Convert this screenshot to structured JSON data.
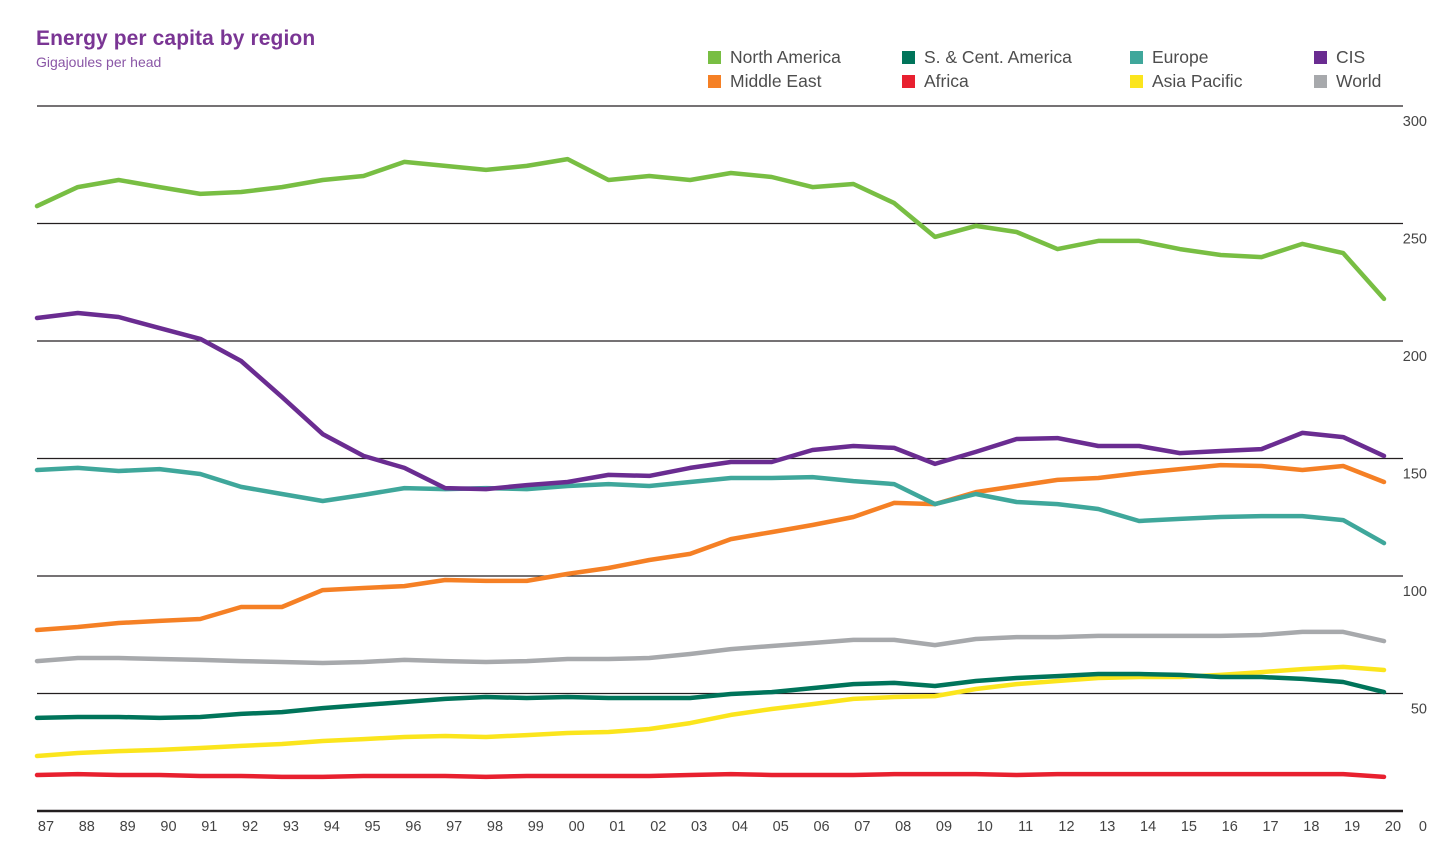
{
  "chart_data": {
    "type": "line",
    "title": "Energy per capita by region",
    "subtitle": "Gigajoules per head",
    "xlabel": "",
    "ylabel": "Gigajoules per head",
    "ylim": [
      0,
      300
    ],
    "yticks": [
      0,
      50,
      100,
      150,
      200,
      250,
      300
    ],
    "ytick_labels": [
      "0",
      "50",
      "100",
      "150",
      "200",
      "250",
      "300"
    ],
    "y_axis_side": "right",
    "grid": true,
    "legend_position": "top-right",
    "categories": [
      "87",
      "88",
      "89",
      "90",
      "91",
      "92",
      "93",
      "94",
      "95",
      "96",
      "97",
      "98",
      "99",
      "00",
      "01",
      "02",
      "03",
      "04",
      "05",
      "06",
      "07",
      "08",
      "09",
      "10",
      "11",
      "12",
      "13",
      "14",
      "15",
      "16",
      "17",
      "18",
      "19",
      "20"
    ],
    "series": [
      {
        "name": "North America",
        "color": "#78be43",
        "values": [
          257.4,
          265.5,
          268.5,
          265.5,
          262.6,
          263.4,
          265.5,
          268.5,
          270.2,
          276.2,
          274.5,
          272.8,
          274.5,
          277.4,
          268.5,
          270.2,
          268.5,
          271.5,
          269.8,
          265.5,
          266.8,
          258.7,
          244.3,
          249.0,
          246.4,
          239.1,
          242.6,
          242.6,
          239.1,
          236.6,
          235.7,
          241.3,
          237.4,
          217.9
        ]
      },
      {
        "name": "S. & Cent. America",
        "color": "#00745a",
        "values": [
          39.6,
          40.0,
          40.0,
          39.6,
          40.0,
          41.3,
          42.1,
          43.8,
          45.1,
          46.4,
          47.7,
          48.5,
          48.1,
          48.5,
          48.1,
          48.1,
          48.1,
          49.8,
          50.6,
          52.3,
          54.0,
          54.5,
          53.2,
          55.3,
          56.6,
          57.4,
          58.3,
          58.3,
          57.9,
          57.0,
          57.0,
          56.2,
          54.9,
          50.6
        ]
      },
      {
        "name": "Europe",
        "color": "#3fa79b",
        "values": [
          145.1,
          146.0,
          144.7,
          145.5,
          143.4,
          137.9,
          134.9,
          131.9,
          134.5,
          137.4,
          137.0,
          137.4,
          137.0,
          138.3,
          139.1,
          138.3,
          140.0,
          141.7,
          141.7,
          142.1,
          140.4,
          139.1,
          130.6,
          134.9,
          131.5,
          130.6,
          128.5,
          123.4,
          124.3,
          125.1,
          125.5,
          125.5,
          123.8,
          114.0
        ]
      },
      {
        "name": "CIS",
        "color": "#6a2c91",
        "values": [
          209.8,
          211.9,
          210.2,
          205.5,
          200.9,
          191.5,
          176.2,
          160.4,
          151.1,
          146.0,
          137.4,
          137.0,
          138.7,
          140.0,
          143.0,
          142.6,
          146.0,
          148.5,
          148.5,
          153.6,
          155.3,
          154.5,
          147.7,
          152.8,
          158.3,
          158.7,
          155.3,
          155.3,
          152.3,
          153.2,
          154.0,
          160.9,
          159.1,
          151.1
        ]
      },
      {
        "name": "Middle East",
        "color": "#f58025",
        "values": [
          77.0,
          78.3,
          80.0,
          80.9,
          81.7,
          86.8,
          86.8,
          94.0,
          94.9,
          95.7,
          98.3,
          97.9,
          97.9,
          100.9,
          103.4,
          106.8,
          109.4,
          115.7,
          118.7,
          121.7,
          125.1,
          131.1,
          130.6,
          135.7,
          138.3,
          140.9,
          141.7,
          143.8,
          145.5,
          147.2,
          146.8,
          145.1,
          146.8,
          140.0
        ]
      },
      {
        "name": "Africa",
        "color": "#e8202f",
        "values": [
          15.3,
          15.7,
          15.3,
          15.3,
          14.9,
          14.9,
          14.5,
          14.5,
          14.9,
          14.9,
          14.9,
          14.5,
          14.9,
          14.9,
          14.9,
          14.9,
          15.3,
          15.7,
          15.3,
          15.3,
          15.3,
          15.7,
          15.7,
          15.7,
          15.3,
          15.7,
          15.7,
          15.7,
          15.7,
          15.7,
          15.7,
          15.7,
          15.7,
          14.5
        ]
      },
      {
        "name": "Asia Pacific",
        "color": "#fbe51d",
        "values": [
          23.4,
          24.7,
          25.5,
          26.0,
          26.8,
          27.7,
          28.5,
          29.8,
          30.6,
          31.5,
          31.9,
          31.5,
          32.3,
          33.2,
          33.6,
          34.9,
          37.4,
          40.9,
          43.4,
          45.5,
          47.7,
          48.5,
          48.9,
          51.9,
          54.0,
          55.3,
          56.6,
          57.0,
          57.0,
          57.9,
          59.1,
          60.4,
          61.3,
          60.0
        ]
      },
      {
        "name": "World",
        "color": "#a7a9ac",
        "values": [
          63.8,
          65.1,
          65.1,
          64.7,
          64.3,
          63.8,
          63.4,
          63.0,
          63.4,
          64.3,
          63.8,
          63.4,
          63.8,
          64.7,
          64.7,
          65.1,
          66.8,
          68.9,
          70.2,
          71.5,
          72.8,
          72.8,
          70.6,
          73.2,
          74.0,
          74.0,
          74.5,
          74.5,
          74.5,
          74.5,
          74.9,
          76.2,
          76.2,
          72.3
        ]
      }
    ]
  },
  "header": {
    "title": "Energy per capita by region",
    "subtitle": "Gigajoules per head"
  },
  "legend": {
    "items": [
      {
        "label": "North America",
        "color": "#78be43"
      },
      {
        "label": "S. & Cent. America",
        "color": "#00745a"
      },
      {
        "label": "Europe",
        "color": "#3fa79b"
      },
      {
        "label": "CIS",
        "color": "#6a2c91"
      },
      {
        "label": "Middle East",
        "color": "#f58025"
      },
      {
        "label": "Africa",
        "color": "#e8202f"
      },
      {
        "label": "Asia Pacific",
        "color": "#fbe51d"
      },
      {
        "label": "World",
        "color": "#a7a9ac"
      }
    ]
  }
}
